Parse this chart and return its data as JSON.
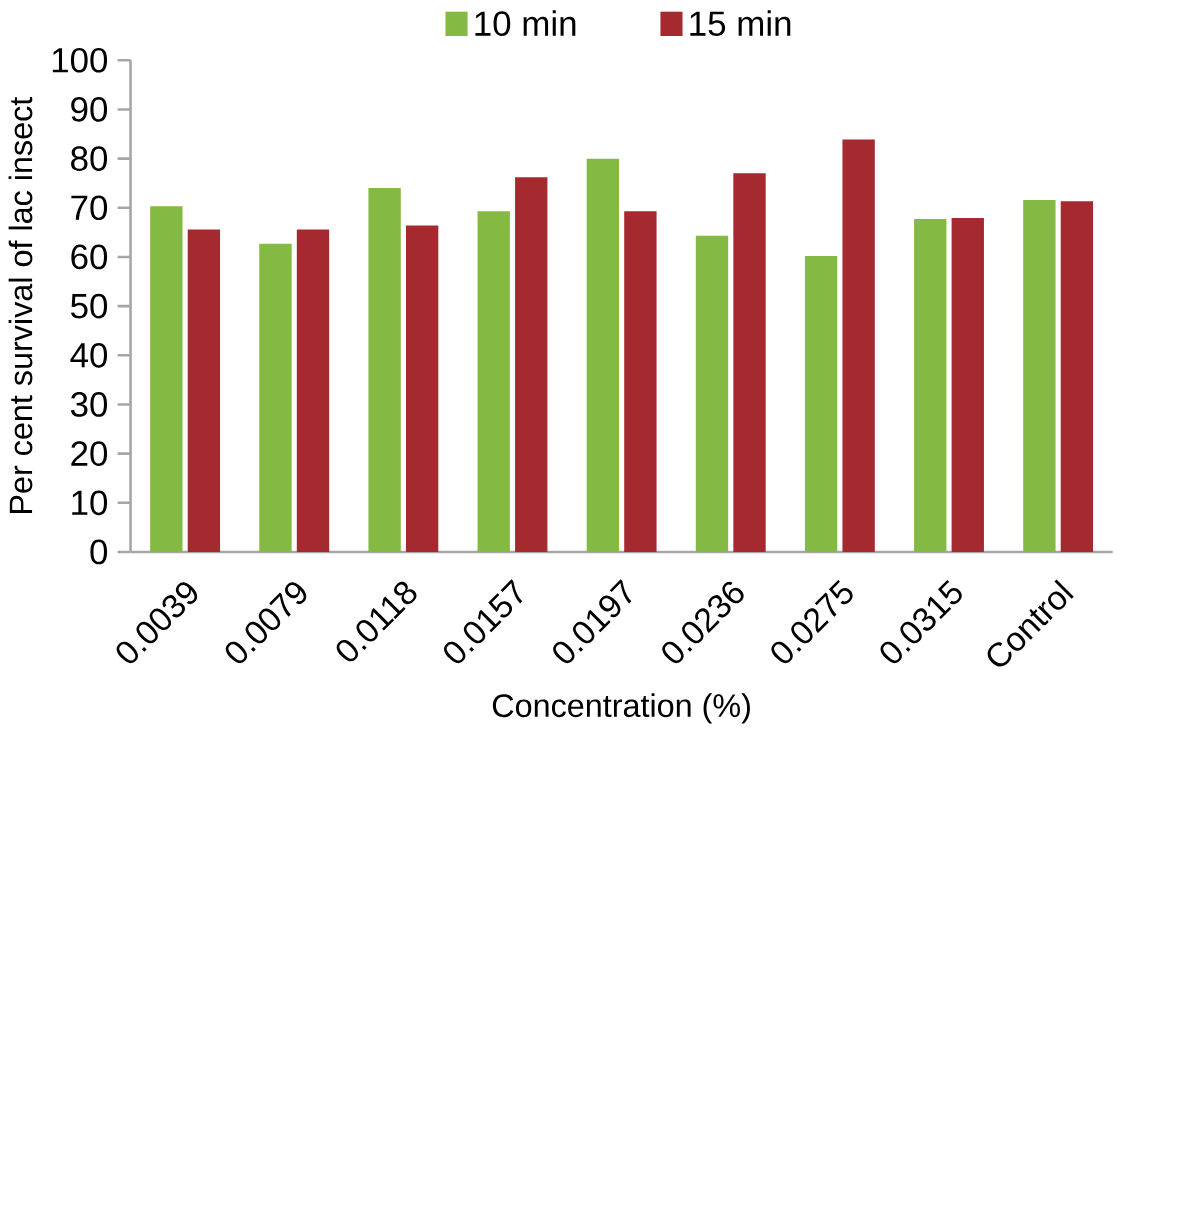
{
  "chart_data": {
    "type": "bar",
    "xlabel": "Concentration (%)",
    "ylabel": "Per cent survival of lac insect",
    "categories": [
      "0.0039",
      "0.0079",
      "0.0118",
      "0.0157",
      "0.0197",
      "0.0236",
      "0.0275",
      "0.0315",
      "Control"
    ],
    "series": [
      {
        "name": "10 min",
        "color": "#84b943",
        "values": [
          70.3,
          62.7,
          74.0,
          69.3,
          80.0,
          64.3,
          60.2,
          67.7,
          71.6
        ]
      },
      {
        "name": "15 min",
        "color": "#a52a30",
        "values": [
          65.6,
          65.6,
          66.4,
          76.2,
          69.3,
          77.0,
          83.9,
          67.9,
          71.3
        ]
      }
    ],
    "ylim": [
      0,
      100
    ],
    "yticks": [
      0,
      10,
      20,
      30,
      40,
      50,
      60,
      70,
      80,
      90,
      100
    ],
    "legend": "top"
  }
}
